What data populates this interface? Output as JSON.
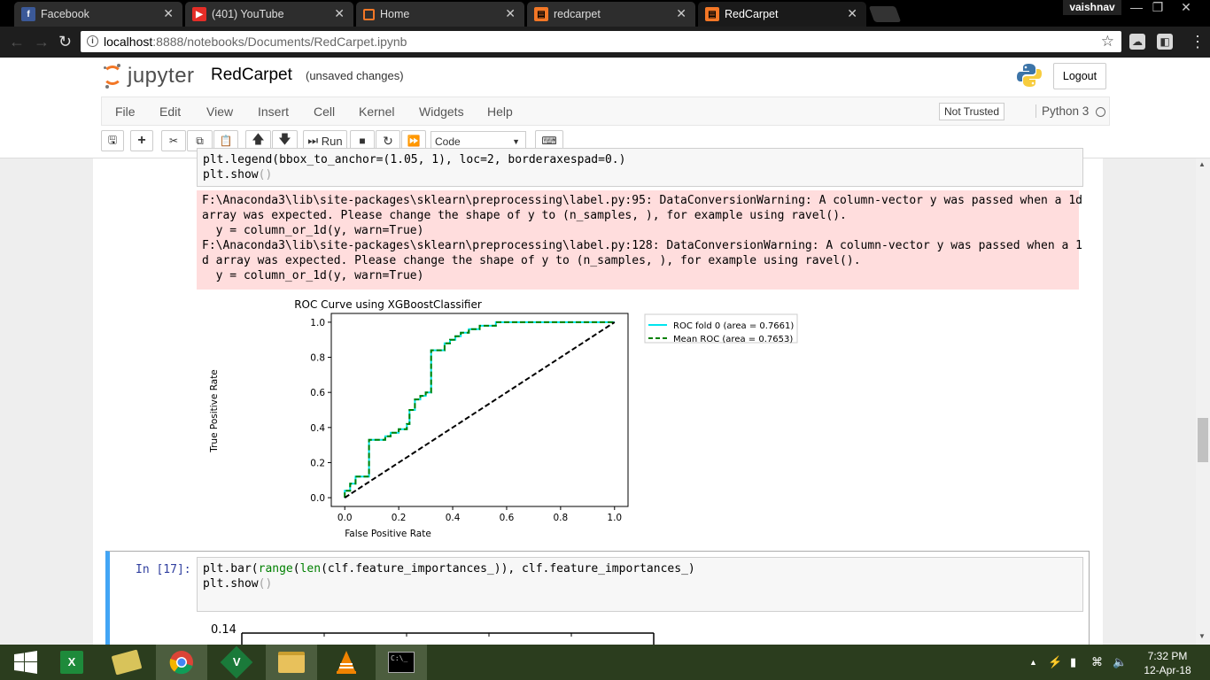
{
  "browser": {
    "tabs": [
      {
        "label": "Facebook",
        "icon": "facebook-icon"
      },
      {
        "label": "(401) YouTube",
        "icon": "youtube-icon"
      },
      {
        "label": "Home",
        "icon": "jupyter-icon"
      },
      {
        "label": "redcarpet",
        "icon": "notebook-icon"
      },
      {
        "label": "RedCarpet",
        "icon": "notebook-icon"
      }
    ],
    "profile": "vaishnav",
    "url_host": "localhost",
    "url_path": ":8888/notebooks/Documents/RedCarpet.ipynb"
  },
  "jupyter": {
    "logo_text": "jupyter",
    "notebook_name": "RedCarpet",
    "save_status": "(unsaved changes)",
    "logout": "Logout",
    "menus": [
      "File",
      "Edit",
      "View",
      "Insert",
      "Cell",
      "Kernel",
      "Widgets",
      "Help"
    ],
    "trust": "Not Trusted",
    "kernel": "Python 3",
    "run_label": "Run",
    "cell_type": "Code"
  },
  "cells": {
    "cell_a_lines": [
      "plt.legend(bbox_to_anchor=(1.05, 1), loc=2, borderaxespad=0.)",
      "plt.show()"
    ],
    "stderr": "F:\\Anaconda3\\lib\\site-packages\\sklearn\\preprocessing\\label.py:95: DataConversionWarning: A column-vector y was passed when a 1d\narray was expected. Please change the shape of y to (n_samples, ), for example using ravel().\n  y = column_or_1d(y, warn=True)\nF:\\Anaconda3\\lib\\site-packages\\sklearn\\preprocessing\\label.py:128: DataConversionWarning: A column-vector y was passed when a 1\nd array was expected. Please change the shape of y to (n_samples, ), for example using ravel().\n  y = column_or_1d(y, warn=True)",
    "cell_b_prompt": "In [17]:",
    "cell_b_lines": [
      "plt.bar(range(len(clf.feature_importances_)), clf.feature_importances_)",
      "plt.show()"
    ],
    "bar_plot_top_tick": "0.14"
  },
  "chart_data": {
    "type": "line",
    "title": "ROC Curve using XGBoostClassifier",
    "xlabel": "False Positive Rate",
    "ylabel": "True Positive Rate",
    "xlim": [
      -0.05,
      1.05
    ],
    "ylim": [
      -0.05,
      1.05
    ],
    "xticks": [
      "0.0",
      "0.2",
      "0.4",
      "0.6",
      "0.8",
      "1.0"
    ],
    "yticks": [
      "0.0",
      "0.2",
      "0.4",
      "0.6",
      "0.8",
      "1.0"
    ],
    "legend_position": "outside-right",
    "series": [
      {
        "name": "ROC fold 0 (area = 0.7661)",
        "color": "#00e5ee",
        "style": "solid",
        "x": [
          0,
          0,
          0.02,
          0.02,
          0.04,
          0.04,
          0.09,
          0.09,
          0.15,
          0.15,
          0.17,
          0.17,
          0.2,
          0.2,
          0.23,
          0.23,
          0.24,
          0.24,
          0.26,
          0.26,
          0.28,
          0.28,
          0.3,
          0.3,
          0.32,
          0.32,
          0.37,
          0.37,
          0.39,
          0.39,
          0.41,
          0.41,
          0.43,
          0.43,
          0.46,
          0.46,
          0.5,
          0.5,
          0.56,
          0.56,
          1.0
        ],
        "y": [
          0,
          0.04,
          0.04,
          0.08,
          0.08,
          0.12,
          0.12,
          0.33,
          0.33,
          0.35,
          0.35,
          0.37,
          0.37,
          0.39,
          0.39,
          0.42,
          0.42,
          0.5,
          0.5,
          0.56,
          0.56,
          0.58,
          0.58,
          0.6,
          0.6,
          0.84,
          0.84,
          0.88,
          0.88,
          0.9,
          0.9,
          0.92,
          0.92,
          0.94,
          0.94,
          0.96,
          0.96,
          0.98,
          0.98,
          1.0,
          1.0
        ]
      },
      {
        "name": "Mean ROC (area = 0.7653)",
        "color": "#008000",
        "style": "dashed",
        "x": [
          0,
          0,
          0.02,
          0.02,
          0.04,
          0.04,
          0.09,
          0.09,
          0.15,
          0.15,
          0.17,
          0.17,
          0.2,
          0.2,
          0.23,
          0.23,
          0.24,
          0.24,
          0.26,
          0.26,
          0.28,
          0.28,
          0.3,
          0.3,
          0.32,
          0.32,
          0.37,
          0.37,
          0.39,
          0.39,
          0.41,
          0.41,
          0.43,
          0.43,
          0.46,
          0.46,
          0.5,
          0.5,
          0.56,
          0.56,
          1.0
        ],
        "y": [
          0,
          0.04,
          0.04,
          0.08,
          0.08,
          0.12,
          0.12,
          0.33,
          0.33,
          0.35,
          0.35,
          0.37,
          0.37,
          0.39,
          0.39,
          0.42,
          0.42,
          0.5,
          0.5,
          0.56,
          0.56,
          0.58,
          0.58,
          0.6,
          0.6,
          0.84,
          0.84,
          0.88,
          0.88,
          0.9,
          0.9,
          0.92,
          0.92,
          0.94,
          0.94,
          0.96,
          0.96,
          0.98,
          0.98,
          1.0,
          1.0
        ]
      },
      {
        "color": "#000000",
        "style": "dashed",
        "x": [
          0,
          1
        ],
        "y": [
          0,
          1
        ]
      }
    ]
  },
  "taskbar": {
    "apps": [
      "start-icon",
      "excel-icon",
      "file-manager-icon",
      "chrome-icon",
      "vim-icon",
      "explorer-icon",
      "vlc-icon",
      "terminal-icon"
    ],
    "time": "7:32 PM",
    "date": "12-Apr-18"
  }
}
